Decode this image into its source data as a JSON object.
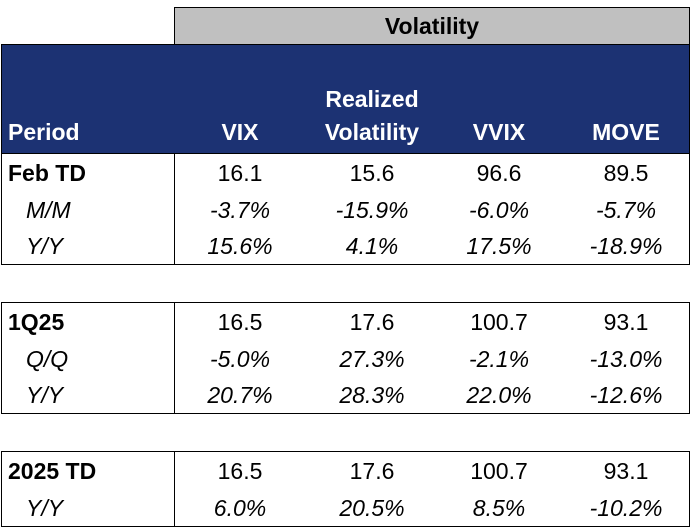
{
  "title": "Volatility",
  "headers": {
    "period": "Period",
    "vix": "VIX",
    "realized_line1": "Realized",
    "realized_line2": "Volatility",
    "vvix": "VVIX",
    "move": "MOVE"
  },
  "sections": [
    {
      "rows": [
        {
          "label": "Feb TD",
          "values": [
            "16.1",
            "15.6",
            "96.6",
            "89.5"
          ]
        },
        {
          "label": "M/M",
          "values": [
            "-3.7%",
            "-15.9%",
            "-6.0%",
            "-5.7%"
          ]
        },
        {
          "label": "Y/Y",
          "values": [
            "15.6%",
            "4.1%",
            "17.5%",
            "-18.9%"
          ]
        }
      ]
    },
    {
      "rows": [
        {
          "label": "1Q25",
          "values": [
            "16.5",
            "17.6",
            "100.7",
            "93.1"
          ]
        },
        {
          "label": "Q/Q",
          "values": [
            "-5.0%",
            "27.3%",
            "-2.1%",
            "-13.0%"
          ]
        },
        {
          "label": "Y/Y",
          "values": [
            "20.7%",
            "28.3%",
            "22.0%",
            "-12.6%"
          ]
        }
      ]
    },
    {
      "rows": [
        {
          "label": "2025 TD",
          "values": [
            "16.5",
            "17.6",
            "100.7",
            "93.1"
          ]
        },
        {
          "label": "Y/Y",
          "values": [
            "6.0%",
            "20.5%",
            "8.5%",
            "-10.2%"
          ]
        }
      ]
    }
  ],
  "colors": {
    "header_bg": "#1c3273",
    "title_bg": "#c0c0c0",
    "header_text": "#ffffff"
  }
}
